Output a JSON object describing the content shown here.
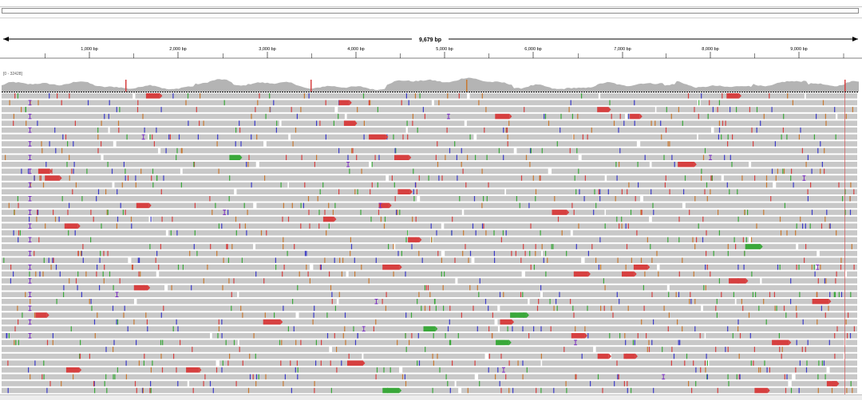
{
  "ruler": {
    "span_label": "9,679 bp",
    "ticks": [
      "1,000 bp",
      "2,000 bp",
      "3,000 bp",
      "4,000 bp",
      "5,000 bp",
      "6,000 bp",
      "7,000 bp",
      "8,000 bp",
      "9,000 bp"
    ]
  },
  "coverage": {
    "range_label": "[0 - 32428]"
  },
  "colors": {
    "read_fill": "#c8c8c8",
    "coverage_fill": "#b4b4b4",
    "mismatch_red": "#d64040",
    "mismatch_green": "#3aa83a",
    "mismatch_blue": "#3b3bc8",
    "mismatch_orange": "#c87830",
    "insertion_purple": "#7a2fc0",
    "axis": "#000000"
  }
}
